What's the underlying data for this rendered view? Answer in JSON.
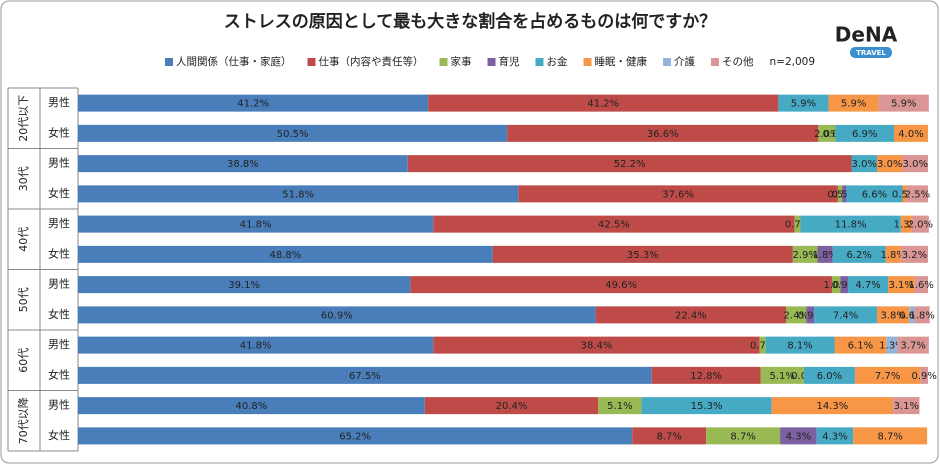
{
  "chart_data": {
    "type": "stacked-barh",
    "title": "ストレスの原因として最も大きな割合を占めるものは何ですか？",
    "note": "n=2,009",
    "logo": {
      "name": "DeNA",
      "sub": "TRAVEL"
    },
    "groups": [
      "20代以下",
      "30代",
      "40代",
      "50代",
      "60代",
      "70代以降"
    ],
    "categories": [
      "男性",
      "女性",
      "男性",
      "女性",
      "男性",
      "女性",
      "男性",
      "女性",
      "男性",
      "女性",
      "男性",
      "女性"
    ],
    "xlim": [
      0,
      100
    ],
    "series": [
      {
        "name": "人間関係（仕事・家庭）",
        "color": "#4a7ebb",
        "values": [
          41.2,
          50.5,
          38.8,
          51.8,
          41.8,
          48.8,
          39.1,
          60.9,
          41.8,
          67.5,
          40.8,
          65.2
        ],
        "value_labels": [
          "41.2%",
          "50.5%",
          "38.8%",
          "51.8%",
          "41.8%",
          "48.8%",
          "39.1%",
          "60.9%",
          "41.8%",
          "67.5%",
          "40.8%",
          "65.2%"
        ]
      },
      {
        "name": "仕事（内容や責任等）",
        "color": "#be4b48",
        "values": [
          41.2,
          36.6,
          52.2,
          37.6,
          42.5,
          35.3,
          49.6,
          22.4,
          38.4,
          12.8,
          20.4,
          8.7
        ],
        "value_labels": [
          "41.2%",
          "36.6%",
          "52.2%",
          "37.6%",
          "42.5%",
          "35.3%",
          "49.6%",
          "22.4%",
          "38.4%",
          "12.8%",
          "20.4%",
          "8.7%"
        ]
      },
      {
        "name": "家事",
        "color": "#98b954",
        "values": [
          0,
          2.0,
          0,
          0.5,
          0.7,
          2.9,
          1.0,
          2.4,
          0.7,
          5.1,
          5.1,
          8.7
        ],
        "value_labels": [
          null,
          "2.0%",
          null,
          "0.5%",
          "0.7%",
          "2.9%",
          "1.0%",
          "2.4%",
          "0.7%",
          "5.1%",
          "5.1%",
          "8.7%"
        ]
      },
      {
        "name": "育児",
        "color": "#7d60a0",
        "values": [
          0,
          0.0,
          0,
          0.5,
          0,
          1.8,
          0.9,
          0.9,
          0,
          0.0,
          0,
          4.3
        ],
        "value_labels": [
          null,
          "0.0%",
          null,
          "0.5%",
          null,
          "1.8%",
          "0.9%",
          "0.9%",
          null,
          "0.0%",
          null,
          "4.3%"
        ]
      },
      {
        "name": "お金",
        "color": "#46aac5",
        "values": [
          5.9,
          6.9,
          3.0,
          6.6,
          11.8,
          6.2,
          4.7,
          7.4,
          8.1,
          6.0,
          15.3,
          4.3
        ],
        "value_labels": [
          "5.9%",
          "6.9%",
          "3.0%",
          "6.6%",
          "11.8%",
          "6.2%",
          "4.7%",
          "7.4%",
          "8.1%",
          "6.0%",
          "15.3%",
          "4.3%"
        ]
      },
      {
        "name": "睡眠・健康",
        "color": "#f79646",
        "values": [
          5.9,
          4.0,
          3.0,
          0.5,
          1.3,
          1.8,
          3.1,
          3.8,
          6.1,
          7.7,
          14.3,
          8.7
        ],
        "value_labels": [
          "5.9%",
          "4.0%",
          "3.0%",
          "0.5%",
          "1.3%",
          "1.8%",
          "3.1%",
          "3.8%",
          "6.1%",
          "7.7%",
          "14.3%",
          "8.7%"
        ]
      },
      {
        "name": "介護",
        "color": "#95b3d7",
        "values": [
          0,
          0,
          0,
          0,
          0,
          0,
          0,
          0.6,
          1.3,
          0,
          0,
          0
        ],
        "value_labels": [
          null,
          null,
          null,
          null,
          null,
          null,
          null,
          "0.6%",
          "1.3%",
          null,
          null,
          null
        ]
      },
      {
        "name": "その他",
        "color": "#d99694",
        "values": [
          5.9,
          0,
          3.0,
          2.5,
          2.0,
          3.2,
          1.6,
          1.8,
          3.7,
          0.9,
          3.1,
          0
        ],
        "value_labels": [
          "5.9%",
          null,
          "3.0%",
          "2.5%",
          "2.0%",
          "3.2%",
          "1.6%",
          "1.8%",
          "3.7%",
          "0.9%",
          "3.1%",
          null
        ]
      }
    ]
  }
}
